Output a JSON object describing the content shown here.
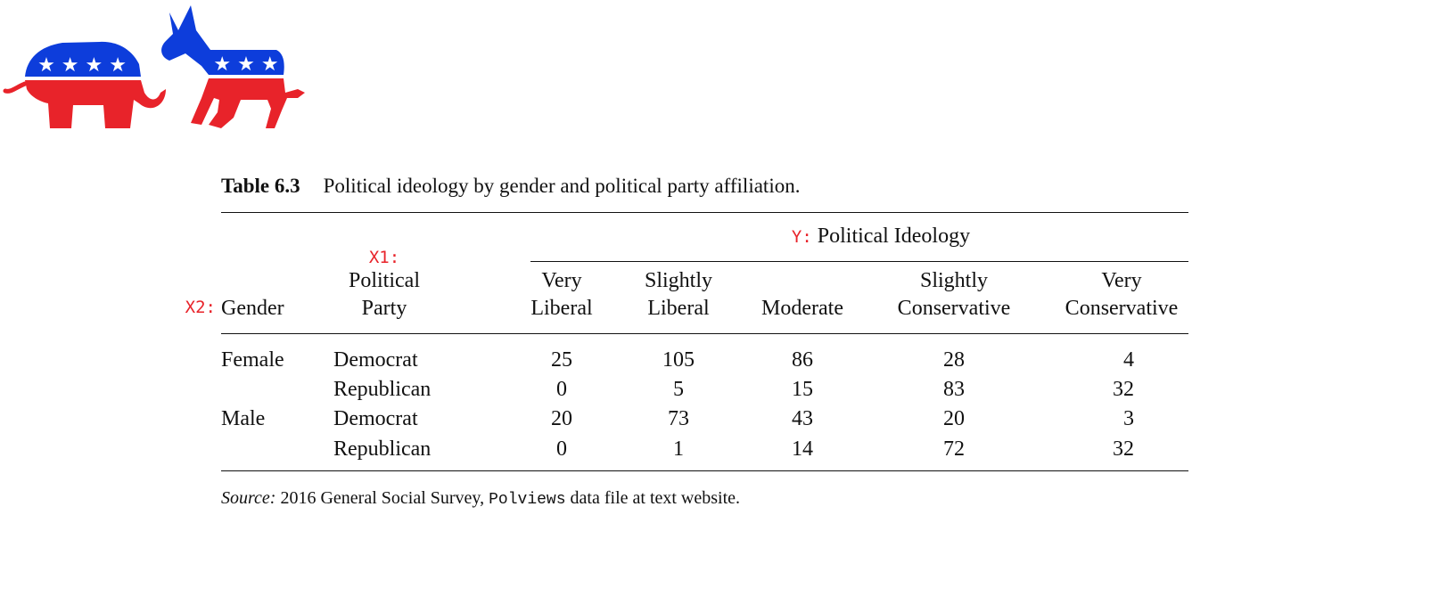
{
  "colors": {
    "logo_blue": "#0d3ddb",
    "logo_red": "#e8232a",
    "annotation_red": "#e8232a",
    "text": "#111111"
  },
  "logo": {
    "icons": [
      "elephant-icon",
      "donkey-icon"
    ],
    "stars": [
      "★ ★ ★ ★",
      "★ ★ ★"
    ]
  },
  "caption": {
    "number": "Table 6.3",
    "text": "Political ideology by gender and political party affiliation."
  },
  "header": {
    "y_tag": "Y:",
    "y_label": "Political Ideology",
    "x1_tag": "X1:",
    "x2_tag": "X2:",
    "gender": "Gender",
    "party": [
      "Political",
      "Party"
    ],
    "columns": [
      [
        "Very",
        "Liberal"
      ],
      [
        "Slightly",
        "Liberal"
      ],
      [
        "",
        "Moderate"
      ],
      [
        "Slightly",
        "Conservative"
      ],
      [
        "Very",
        "Conservative"
      ]
    ]
  },
  "rows": [
    {
      "gender": "Female",
      "party": "Democrat",
      "values": [
        "25",
        "105",
        "86",
        "28",
        "4"
      ]
    },
    {
      "gender": "",
      "party": "Republican",
      "values": [
        "0",
        "5",
        "15",
        "83",
        "32"
      ]
    },
    {
      "gender": "Male",
      "party": "Democrat",
      "values": [
        "20",
        "73",
        "43",
        "20",
        "3"
      ]
    },
    {
      "gender": "",
      "party": "Republican",
      "values": [
        "0",
        "1",
        "14",
        "72",
        "32"
      ]
    }
  ],
  "source": {
    "label": "Source:",
    "text_a": " 2016 General Social Survey, ",
    "code": "Polviews",
    "text_b": " data file at text website."
  }
}
